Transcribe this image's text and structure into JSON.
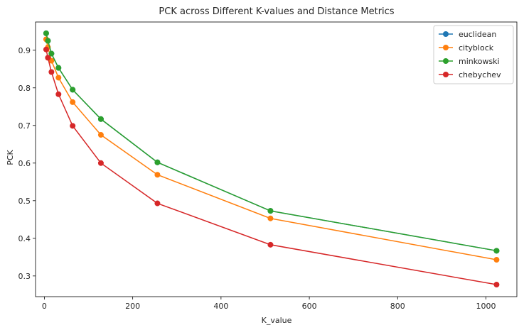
{
  "chart_data": {
    "type": "line",
    "title": "PCK across Different K-values and Distance Metrics",
    "xlabel": "K_value",
    "ylabel": "PCK",
    "xlim": [
      -20,
      1070
    ],
    "ylim": [
      0.245,
      0.975
    ],
    "xticks": [
      0,
      200,
      400,
      600,
      800,
      1000
    ],
    "yticks": [
      0.3,
      0.4,
      0.5,
      0.6,
      0.7,
      0.8,
      0.9
    ],
    "grid": false,
    "legend_position": "top-right",
    "x": [
      4,
      8,
      16,
      32,
      64,
      128,
      256,
      512,
      1024
    ],
    "series": [
      {
        "name": "euclidean",
        "color": "#1f77b4",
        "values": [
          0.945,
          0.925,
          0.891,
          0.853,
          0.795,
          0.717,
          0.602,
          0.473,
          0.367
        ]
      },
      {
        "name": "cityblock",
        "color": "#ff7f0e",
        "values": [
          0.929,
          0.908,
          0.872,
          0.827,
          0.762,
          0.675,
          0.569,
          0.453,
          0.343
        ]
      },
      {
        "name": "minkowski",
        "color": "#2ca02c",
        "values": [
          0.945,
          0.925,
          0.891,
          0.853,
          0.795,
          0.717,
          0.602,
          0.473,
          0.367
        ]
      },
      {
        "name": "chebychev",
        "color": "#d62728",
        "values": [
          0.902,
          0.88,
          0.842,
          0.783,
          0.699,
          0.6,
          0.493,
          0.383,
          0.277
        ]
      }
    ]
  }
}
